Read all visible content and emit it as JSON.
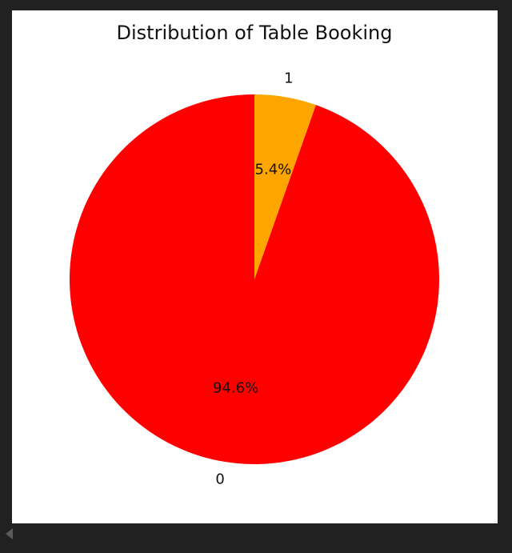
{
  "chart_data": {
    "type": "pie",
    "title": "Distribution of Table Booking",
    "labels": [
      "0",
      "1"
    ],
    "values": [
      94.6,
      5.4
    ],
    "percent_labels": [
      "94.6%",
      "5.4%"
    ],
    "colors": [
      "#ff0000",
      "#ffa500"
    ],
    "start_angle_deg": 90,
    "direction": "counterclockwise"
  }
}
